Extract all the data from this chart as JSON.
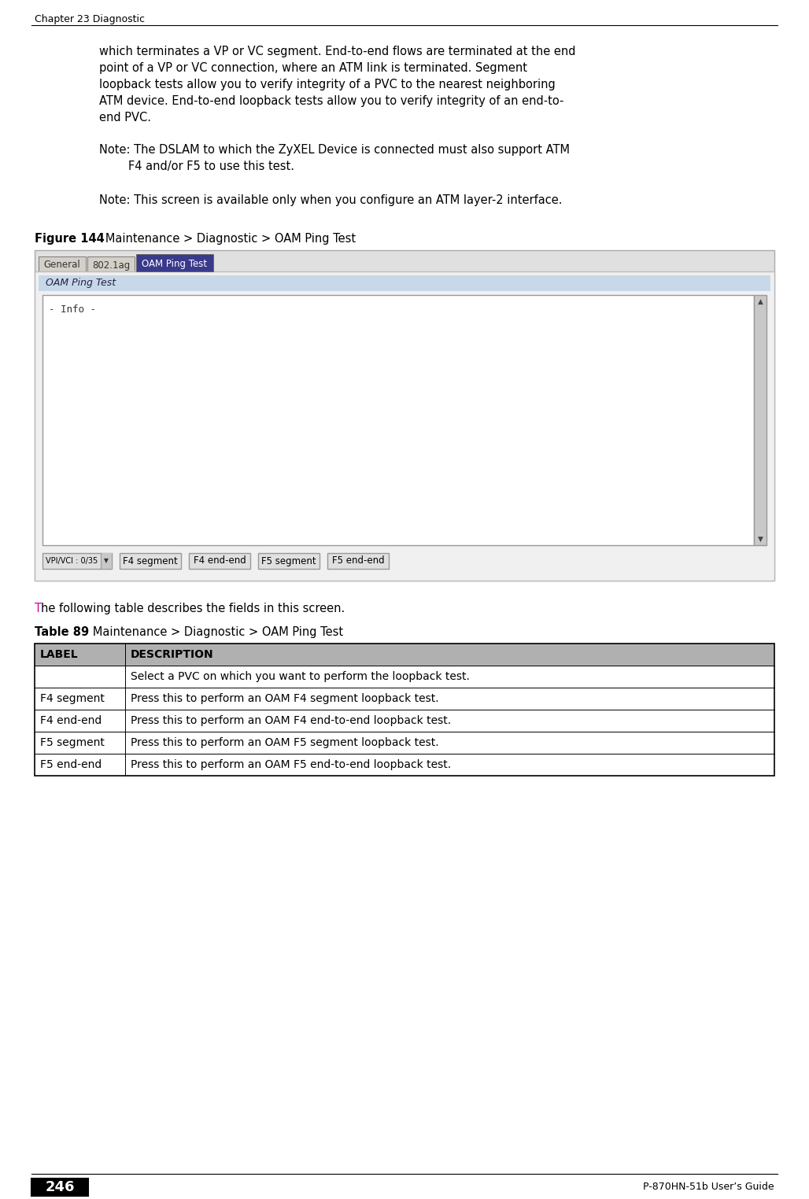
{
  "page_bg": "#ffffff",
  "header_text": "Chapter 23 Diagnostic",
  "footer_page": "246",
  "footer_right": "P-870HN-51b User’s Guide",
  "body_text_lines": [
    "which terminates a VP or VC segment. End-to-end flows are terminated at the end",
    "point of a VP or VC connection, where an ATM link is terminated. Segment",
    "loopback tests allow you to verify integrity of a PVC to the nearest neighboring",
    "ATM device. End-to-end loopback tests allow you to verify integrity of an end-to-",
    "end PVC."
  ],
  "note1_line1": "Note: The DSLAM to which the ZyXEL Device is connected must also support ATM",
  "note1_line2": "        F4 and/or F5 to use this test.",
  "note2": "Note: This screen is available only when you configure an ATM layer-2 interface.",
  "figure_label": "Figure 144",
  "figure_title": "   Maintenance > Diagnostic > OAM Ping Test",
  "table_label": "Table 89",
  "table_title": "   Maintenance > Diagnostic > OAM Ping Test",
  "following_text_T": "T",
  "following_text_rest": "he following table describes the fields in this screen.",
  "tab_labels": [
    "General",
    "802.1ag",
    "OAM Ping Test"
  ],
  "active_tab": "OAM Ping Test",
  "section_header": "OAM Ping Test",
  "info_text": "- Info -",
  "button_labels": [
    "VPI/VCI : 0/35",
    "F4 segment",
    "F4 end-end",
    "F5 segment",
    "F5 end-end"
  ],
  "table_headers": [
    "LABEL",
    "DESCRIPTION"
  ],
  "table_rows": [
    [
      "",
      "Select a PVC on which you want to perform the loopback test."
    ],
    [
      "F4 segment",
      "Press this to perform an OAM F4 segment loopback test."
    ],
    [
      "F4 end-end",
      "Press this to perform an OAM F4 end-to-end loopback test."
    ],
    [
      "F5 segment",
      "Press this to perform an OAM F5 segment loopback test."
    ],
    [
      "F5 end-end",
      "Press this to perform an OAM F5 end-to-end loopback test."
    ]
  ],
  "tab_bg_inactive": "#d4d0c8",
  "tab_bg_active": "#3a3a8c",
  "tab_text_active": "#ffffff",
  "tab_text_inactive": "#333333",
  "section_header_bg": "#c8d8e8",
  "info_box_bg": "#ffffff",
  "info_box_border": "#999999",
  "scrollbar_bg": "#c0c0c0",
  "button_bg": "#e0e0e0",
  "button_border": "#999999",
  "table_header_bg": "#b0b0b0",
  "table_row_bg": "#ffffff",
  "table_border": "#000000",
  "outer_border": "#aaaaaa",
  "outer_bg": "#e0e0e0"
}
